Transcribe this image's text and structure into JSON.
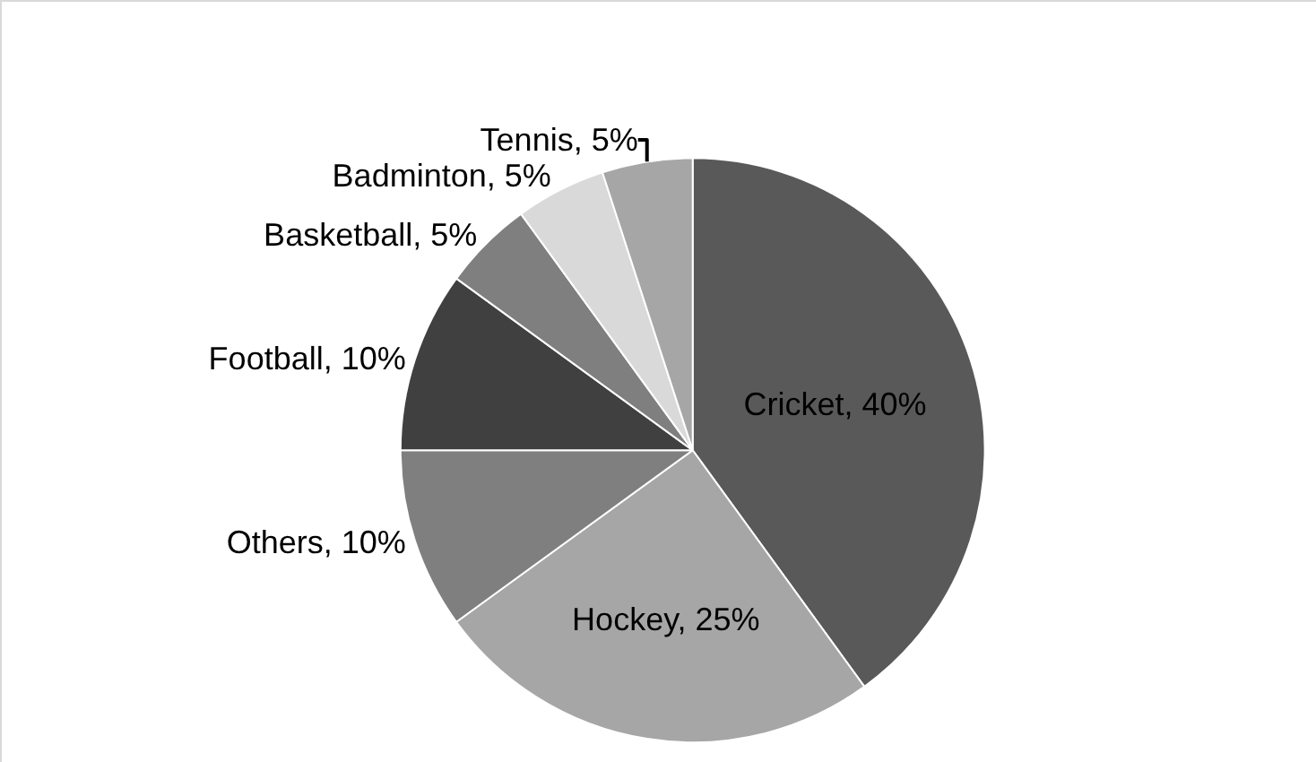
{
  "chart_data": {
    "type": "pie",
    "categories": [
      "Cricket",
      "Hockey",
      "Others",
      "Football",
      "Basketball",
      "Badminton",
      "Tennis"
    ],
    "values": [
      40,
      25,
      10,
      10,
      5,
      5,
      5
    ],
    "value_labels": [
      "40%",
      "25%",
      "10%",
      "10%",
      "5%",
      "5%",
      "5%"
    ],
    "colors": [
      "#595959",
      "#a6a6a6",
      "#7f7f7f",
      "#404040",
      "#7f7f7f",
      "#d9d9d9",
      "#a6a6a6"
    ],
    "legend": false
  }
}
